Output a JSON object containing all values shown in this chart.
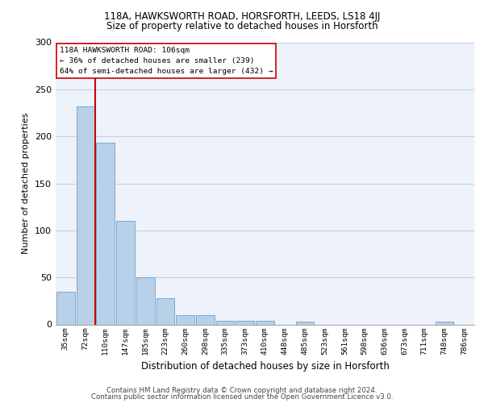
{
  "title1": "118A, HAWKSWORTH ROAD, HORSFORTH, LEEDS, LS18 4JJ",
  "title2": "Size of property relative to detached houses in Horsforth",
  "xlabel": "Distribution of detached houses by size in Horsforth",
  "ylabel": "Number of detached properties",
  "footer1": "Contains HM Land Registry data © Crown copyright and database right 2024.",
  "footer2": "Contains public sector information licensed under the Open Government Licence v3.0.",
  "annotation_line1": "118A HAWKSWORTH ROAD: 106sqm",
  "annotation_line2": "← 36% of detached houses are smaller (239)",
  "annotation_line3": "64% of semi-detached houses are larger (432) →",
  "bar_color": "#b8d0e8",
  "bar_edge_color": "#6aa0cc",
  "vline_color": "#cc0000",
  "bg_color": "#eef2fa",
  "grid_color": "#c8cfe8",
  "categories": [
    "35sqm",
    "72sqm",
    "110sqm",
    "147sqm",
    "185sqm",
    "223sqm",
    "260sqm",
    "298sqm",
    "335sqm",
    "373sqm",
    "410sqm",
    "448sqm",
    "485sqm",
    "523sqm",
    "561sqm",
    "598sqm",
    "636sqm",
    "673sqm",
    "711sqm",
    "748sqm",
    "786sqm"
  ],
  "values": [
    35,
    232,
    193,
    110,
    50,
    28,
    10,
    10,
    4,
    4,
    4,
    0,
    3,
    0,
    0,
    0,
    0,
    0,
    0,
    3,
    0
  ],
  "vline_x_index": 2,
  "ylim": [
    0,
    300
  ],
  "yticks": [
    0,
    50,
    100,
    150,
    200,
    250,
    300
  ]
}
